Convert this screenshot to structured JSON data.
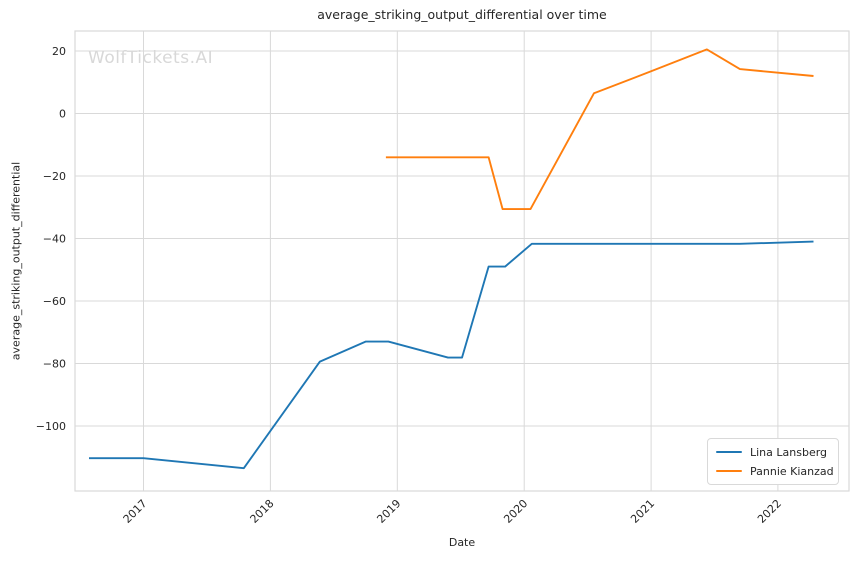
{
  "watermark": {
    "text": "WolfTickets.AI",
    "color": "#d8d8d8"
  },
  "chart_data": {
    "type": "line",
    "title": "average_striking_output_differential over time",
    "xlabel": "Date",
    "ylabel": "average_striking_output_differential",
    "grid": true,
    "legend_position": "lower right",
    "xlim": [
      2016.46,
      2022.56
    ],
    "ylim": [
      -120.8,
      26.4
    ],
    "xticks": {
      "values": [
        2017,
        2018,
        2019,
        2020,
        2021,
        2022
      ],
      "labels": [
        "2017",
        "2018",
        "2019",
        "2020",
        "2021",
        "2022"
      ]
    },
    "yticks": {
      "values": [
        20,
        0,
        -20,
        -40,
        -60,
        -80,
        -100
      ],
      "labels": [
        "20",
        "0",
        "−20",
        "−40",
        "−60",
        "−80",
        "−100"
      ]
    },
    "colors": {
      "grid": "#d9d9d9",
      "spine": "#d9d9d9",
      "text": "#262626",
      "background": "#ffffff"
    },
    "series": [
      {
        "name": "Lina Lansberg",
        "color": "#1f77b4",
        "points": [
          [
            2016.57,
            -110.3
          ],
          [
            2017.0,
            -110.3
          ],
          [
            2017.79,
            -113.5
          ],
          [
            2018.39,
            -79.4
          ],
          [
            2018.75,
            -73.0
          ],
          [
            2018.93,
            -73.0
          ],
          [
            2019.4,
            -78.1
          ],
          [
            2019.51,
            -78.1
          ],
          [
            2019.72,
            -49.0
          ],
          [
            2019.85,
            -49.0
          ],
          [
            2020.06,
            -41.7
          ],
          [
            2021.7,
            -41.7
          ],
          [
            2022.28,
            -41.0
          ]
        ]
      },
      {
        "name": "Pannie Kianzad",
        "color": "#ff7f0e",
        "points": [
          [
            2018.91,
            -14.0
          ],
          [
            2019.72,
            -14.0
          ],
          [
            2019.83,
            -30.6
          ],
          [
            2020.05,
            -30.6
          ],
          [
            2020.55,
            6.5
          ],
          [
            2021.0,
            13.5
          ],
          [
            2021.44,
            20.5
          ],
          [
            2021.7,
            14.2
          ],
          [
            2022.28,
            12.0
          ]
        ]
      }
    ]
  }
}
